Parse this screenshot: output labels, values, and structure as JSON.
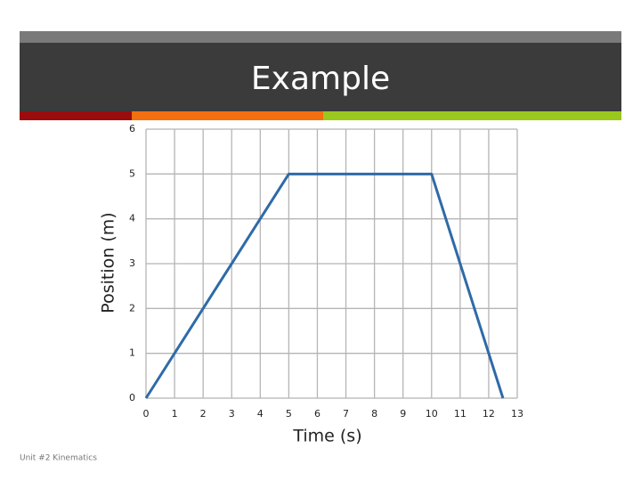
{
  "chart_data": {
    "type": "line",
    "title": "Example",
    "x": [
      0,
      5,
      10,
      12.5
    ],
    "values": [
      0,
      5,
      5,
      0
    ],
    "color": "#2f6aa8",
    "xlabel": "Time (s)",
    "ylabel": "Position (m)",
    "xlim": [
      0,
      13
    ],
    "xticks": [
      0,
      1,
      2,
      3,
      4,
      5,
      6,
      7,
      8,
      9,
      10,
      11,
      12,
      13
    ],
    "ylim": [
      0,
      6
    ],
    "yticks": [
      0,
      1,
      2,
      3,
      4,
      5,
      6
    ],
    "grid": true
  },
  "footer": "Unit #2 Kinematics"
}
